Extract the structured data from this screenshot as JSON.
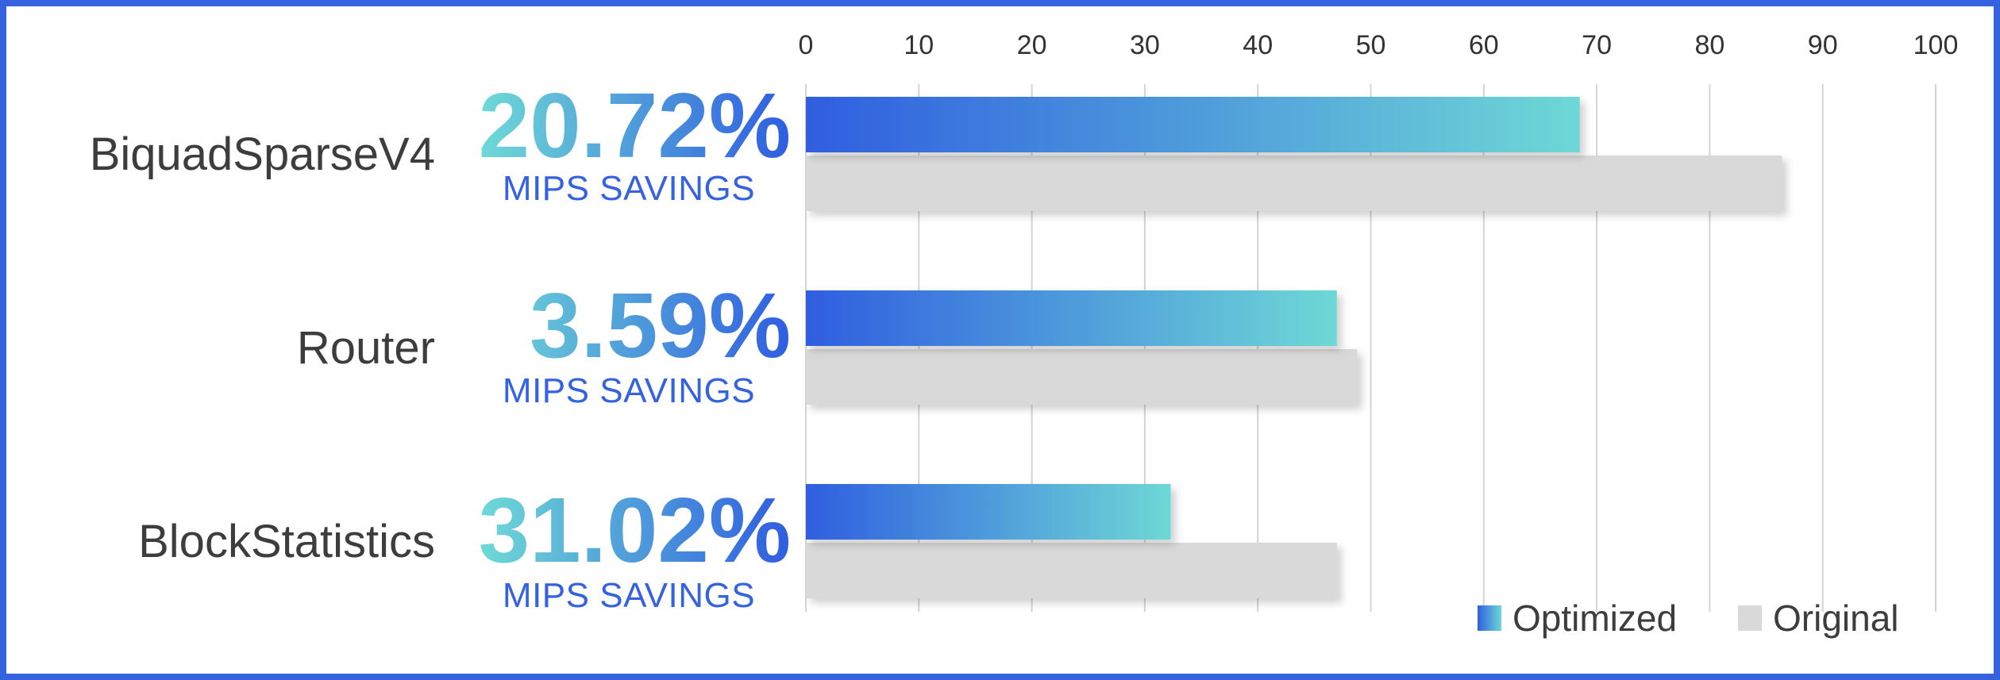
{
  "chart_data": {
    "type": "bar",
    "orientation": "horizontal",
    "categories": [
      "BiquadSparseV4",
      "Router",
      "BlockStatistics"
    ],
    "series": [
      {
        "name": "Optimized",
        "values": [
          68.5,
          47,
          32.3
        ]
      },
      {
        "name": "Original",
        "values": [
          86.4,
          48.8,
          47
        ]
      }
    ],
    "xlim": [
      0,
      100
    ],
    "xticks": [
      0,
      10,
      20,
      30,
      40,
      50,
      60,
      70,
      80,
      90,
      100
    ],
    "grid": true,
    "legend_position": "bottom-right",
    "annotations": [
      {
        "value": "20.72%",
        "subtitle": "MIPS SAVINGS"
      },
      {
        "value": "3.59%",
        "subtitle": "MIPS SAVINGS"
      },
      {
        "value": "31.02%",
        "subtitle": "MIPS SAVINGS"
      }
    ]
  },
  "colors": {
    "border": "#3563e0",
    "optimized_start": "#2f5ee0",
    "optimized_end": "#6ed8d6",
    "original": "#d9d9d9",
    "gridline": "#d4d4d4",
    "label_text": "#3d3d3d",
    "savings_text": "#3563e0"
  }
}
